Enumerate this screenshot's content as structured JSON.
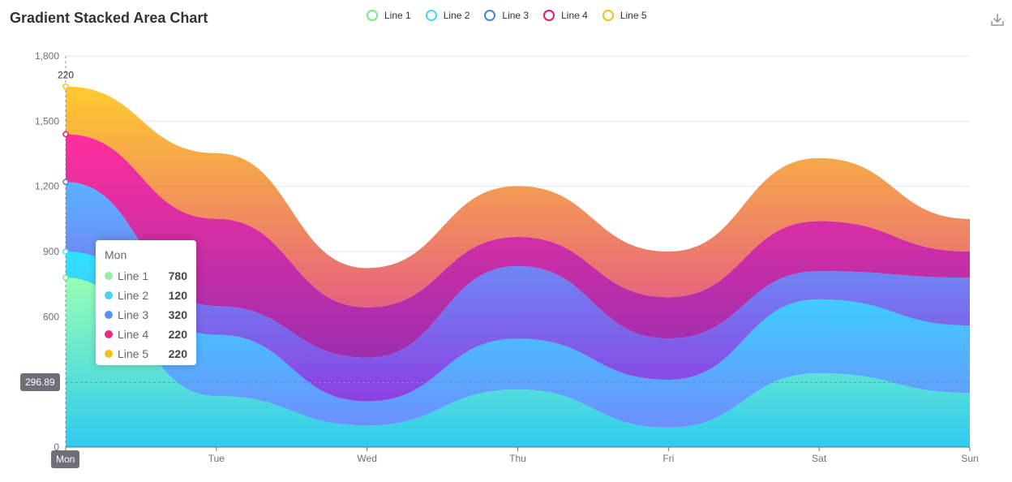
{
  "chart_data": {
    "type": "area",
    "title": "Gradient Stacked Area Chart",
    "stacked": true,
    "smooth": true,
    "categories": [
      "Mon",
      "Tue",
      "Wed",
      "Thu",
      "Fri",
      "Sat",
      "Sun"
    ],
    "ylim": [
      0,
      1800
    ],
    "yticks": [
      "0",
      "300",
      "600",
      "900",
      "1,200",
      "1,500",
      "1,800"
    ],
    "grid": true,
    "legend_position": "top-center",
    "series": [
      {
        "name": "Line 1",
        "values": [
          780,
          235,
          100,
          265,
          90,
          340,
          250
        ],
        "color": "#80FFA5",
        "gradient": [
          "#80FFA5",
          "#01BFEC"
        ]
      },
      {
        "name": "Line 2",
        "values": [
          120,
          282,
          111,
          234,
          220,
          340,
          310
        ],
        "color": "#00DDFF",
        "gradient": [
          "#00DDFF",
          "#4D77FF"
        ]
      },
      {
        "name": "Line 3",
        "values": [
          320,
          132,
          201,
          334,
          190,
          130,
          220
        ],
        "color": "#37A2FF",
        "gradient": [
          "#37A2FF",
          "#7415DB"
        ]
      },
      {
        "name": "Line 4",
        "values": [
          220,
          402,
          231,
          134,
          190,
          230,
          120
        ],
        "color": "#FF0087",
        "gradient": [
          "#FF0087",
          "#87009D"
        ]
      },
      {
        "name": "Line 5",
        "values": [
          220,
          302,
          181,
          234,
          210,
          290,
          150
        ],
        "color": "#FFBF00",
        "gradient": [
          "#FFBF00",
          "#E03E64"
        ]
      }
    ],
    "top_label": "220",
    "axis_pointer": {
      "y_label": "296.89",
      "x_label": "Mon"
    },
    "tooltip": {
      "title": "Mon",
      "rows": [
        {
          "name": "Line 1",
          "value": "780",
          "color": "#91f0a8"
        },
        {
          "name": "Line 2",
          "value": "120",
          "color": "#4ad2f0"
        },
        {
          "name": "Line 3",
          "value": "320",
          "color": "#5b8ff0"
        },
        {
          "name": "Line 4",
          "value": "220",
          "color": "#ee2a7b"
        },
        {
          "name": "Line 5",
          "value": "220",
          "color": "#f2c21a"
        }
      ]
    },
    "legend_icon_colors": [
      "#7ee787",
      "#4dd7f2",
      "#4a7fe0",
      "#e6186c",
      "#f2c21a"
    ]
  }
}
